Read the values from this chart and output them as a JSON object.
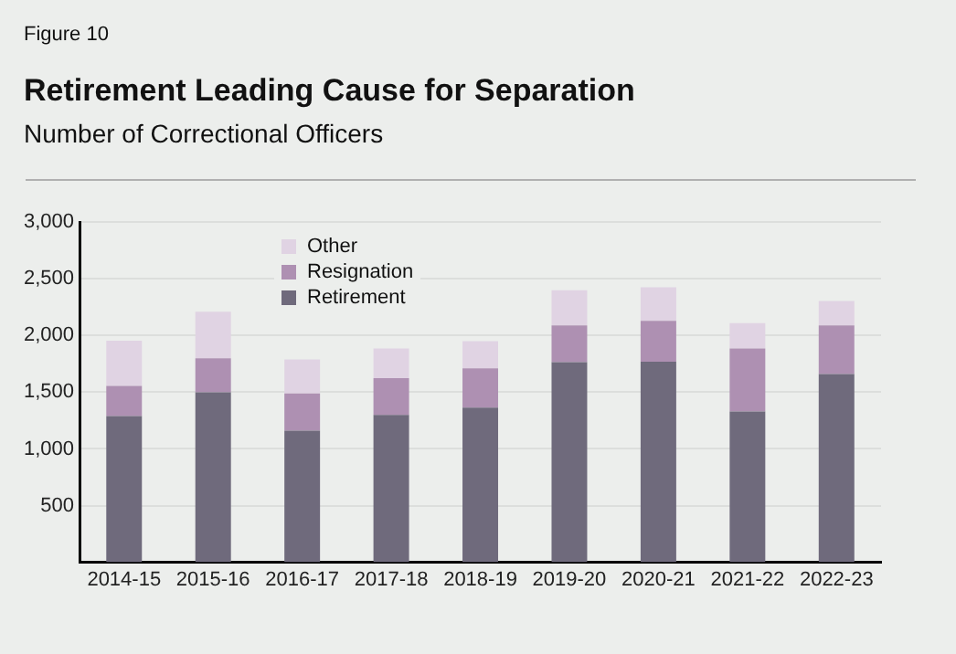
{
  "chart_data": {
    "type": "bar",
    "title": "Retirement Leading Cause for Separation",
    "subtitle": "Number of Correctional Officers",
    "annotations": [
      "Figure 10"
    ],
    "categories": [
      "2014-15",
      "2015-16",
      "2016-17",
      "2017-18",
      "2018-19",
      "2019-20",
      "2020-21",
      "2021-22",
      "2022-23"
    ],
    "series": [
      {
        "name": "Retirement",
        "color": "#6f6a7c",
        "values": [
          1290,
          1500,
          1160,
          1300,
          1365,
          1765,
          1770,
          1330,
          1660
        ]
      },
      {
        "name": "Resignation",
        "color": "#ae90b2",
        "values": [
          265,
          300,
          330,
          325,
          345,
          325,
          360,
          555,
          430
        ]
      },
      {
        "name": "Other",
        "color": "#e0d3e3",
        "values": [
          400,
          410,
          300,
          260,
          240,
          310,
          295,
          225,
          215
        ]
      }
    ],
    "stacked": true,
    "ylim": [
      0,
      3000
    ],
    "yticks": [
      500,
      {
        "value": 1000,
        "label": "1,000"
      },
      {
        "value": 1500,
        "label": "1,500"
      },
      {
        "value": 2000,
        "label": "2,000"
      },
      {
        "value": 2500,
        "label": "2,500"
      },
      {
        "value": 3000,
        "label": "3,000"
      }
    ],
    "grid": "y",
    "legend": "top left"
  }
}
